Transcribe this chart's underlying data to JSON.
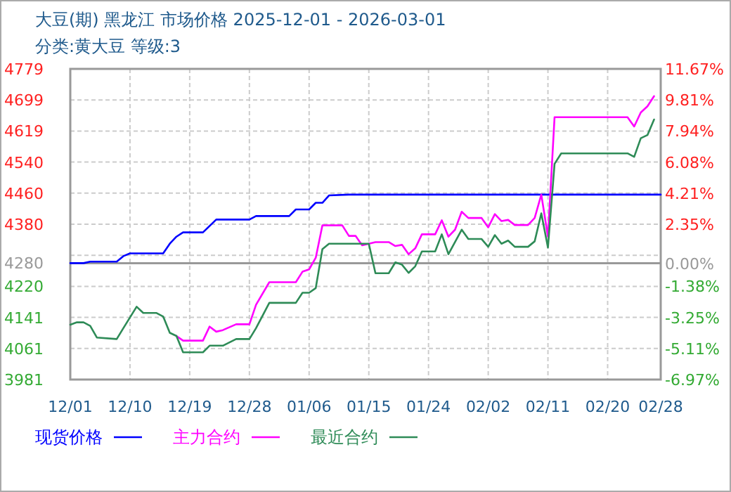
{
  "chart_data": {
    "type": "line",
    "title": "大豆(期) 黑龙江 市场价格 2025-12-01 - 2026-03-01",
    "subtitle": "分类:黄大豆 等级:3",
    "xlim": [
      "2025-12-01",
      "2026-02-28"
    ],
    "xticks": [
      {
        "value": "2025-12-01",
        "label": "12/01"
      },
      {
        "value": "2025-12-10",
        "label": "12/10"
      },
      {
        "value": "2025-12-19",
        "label": "12/19"
      },
      {
        "value": "2025-12-28",
        "label": "12/28"
      },
      {
        "value": "2026-01-06",
        "label": "01/06"
      },
      {
        "value": "2026-01-15",
        "label": "01/15"
      },
      {
        "value": "2026-01-24",
        "label": "01/24"
      },
      {
        "value": "2026-02-02",
        "label": "02/02"
      },
      {
        "value": "2026-02-11",
        "label": "02/11"
      },
      {
        "value": "2026-02-20",
        "label": "02/20"
      },
      {
        "value": "2026-02-28",
        "label": "02/28"
      }
    ],
    "ylim": [
      3981,
      4779
    ],
    "yticks": [
      4779,
      {
        "value": 4699.2,
        "label": "4699"
      },
      {
        "value": 4619.4,
        "label": "4619"
      },
      {
        "value": 4539.6,
        "label": "4540"
      },
      {
        "value": 4459.8,
        "label": "4460"
      },
      4380,
      {
        "value": 4300.2,
        "label": null
      },
      4280,
      {
        "value": 4220.4,
        "label": "4220"
      },
      {
        "value": 4140.6,
        "label": "4141"
      },
      {
        "value": 4060.8,
        "label": "4061"
      },
      3981
    ],
    "y2lim": [
      -6.97,
      11.67
    ],
    "y2ticks": [
      {
        "value": 11.67,
        "label": "11.67%"
      },
      {
        "value": 9.81,
        "label": "9.81%"
      },
      {
        "value": 7.94,
        "label": "7.94%"
      },
      {
        "value": 6.08,
        "label": "6.08%"
      },
      {
        "value": 4.21,
        "label": "4.21%"
      },
      {
        "value": 2.35,
        "label": "2.35%"
      },
      {
        "value": 0,
        "label": "0.00%"
      },
      {
        "value": -1.38,
        "label": "-1.38%"
      },
      {
        "value": -3.25,
        "label": "-3.25%"
      },
      {
        "value": -5.11,
        "label": "-5.11%"
      },
      {
        "value": -6.97,
        "label": "-6.97%"
      }
    ],
    "ref_lines": [
      {
        "axis": "y",
        "value": 4280,
        "color": "#999999"
      }
    ],
    "grid": true,
    "legend": "bottom",
    "series": [
      {
        "name": "现货价格",
        "color": "#0000ff",
        "x": [
          "2025-12-01",
          "2025-12-03",
          "2025-12-04",
          "2025-12-08",
          "2025-12-09",
          "2025-12-10",
          "2025-12-15",
          "2025-12-16",
          "2025-12-17",
          "2025-12-18",
          "2025-12-21",
          "2025-12-23",
          "2025-12-28",
          "2025-12-29",
          "2026-01-03",
          "2026-01-04",
          "2026-01-06",
          "2026-01-07",
          "2026-01-08",
          "2026-01-09",
          "2026-01-12",
          "2026-02-28"
        ],
        "values": [
          4280,
          4280,
          4284,
          4284,
          4298,
          4305,
          4305,
          4330,
          4348,
          4359,
          4359,
          4392,
          4392,
          4401,
          4401,
          4418,
          4418,
          4435,
          4435,
          4454,
          4456,
          4456
        ]
      },
      {
        "name": "主力合约",
        "color": "#ff00ff",
        "x": [
          "2025-12-17",
          "2025-12-18",
          "2025-12-21",
          "2025-12-22",
          "2025-12-23",
          "2025-12-24",
          "2025-12-26",
          "2025-12-28",
          "2025-12-29",
          "2025-12-31",
          "2026-01-04",
          "2026-01-05",
          "2026-01-06",
          "2026-01-07",
          "2026-01-08",
          "2026-01-11",
          "2026-01-12",
          "2026-01-13",
          "2026-01-14",
          "2026-01-15",
          "2026-01-16",
          "2026-01-18",
          "2026-01-19",
          "2026-01-20",
          "2026-01-21",
          "2026-01-22",
          "2026-01-23",
          "2026-01-25",
          "2026-01-26",
          "2026-01-27",
          "2026-01-28",
          "2026-01-29",
          "2026-01-30",
          "2026-02-01",
          "2026-02-02",
          "2026-02-03",
          "2026-02-04",
          "2026-02-05",
          "2026-02-06",
          "2026-02-08",
          "2026-02-09",
          "2026-02-10",
          "2026-02-11",
          "2026-02-12",
          "2026-02-13",
          "2026-02-23",
          "2026-02-24",
          "2026-02-25",
          "2026-02-26",
          "2026-02-27"
        ],
        "values": [
          4093,
          4081,
          4081,
          4117,
          4104,
          4108,
          4123,
          4123,
          4173,
          4231,
          4231,
          4258,
          4264,
          4294,
          4377,
          4377,
          4350,
          4350,
          4326,
          4330,
          4334,
          4334,
          4324,
          4327,
          4303,
          4318,
          4354,
          4354,
          4390,
          4348,
          4366,
          4412,
          4396,
          4396,
          4372,
          4406,
          4388,
          4391,
          4378,
          4378,
          4396,
          4456,
          4348,
          4655,
          4655,
          4655,
          4631,
          4667,
          4683,
          4709
        ]
      },
      {
        "name": "最近合约",
        "color": "#2e8b57",
        "x": [
          "2025-12-01",
          "2025-12-02",
          "2025-12-03",
          "2025-12-04",
          "2025-12-05",
          "2025-12-08",
          "2025-12-09",
          "2025-12-11",
          "2025-12-12",
          "2025-12-14",
          "2025-12-15",
          "2025-12-16",
          "2025-12-17",
          "2025-12-18",
          "2025-12-21",
          "2025-12-22",
          "2025-12-24",
          "2025-12-26",
          "2025-12-28",
          "2025-12-29",
          "2025-12-31",
          "2026-01-04",
          "2026-01-05",
          "2026-01-06",
          "2026-01-07",
          "2026-01-08",
          "2026-01-09",
          "2026-01-15",
          "2026-01-16",
          "2026-01-18",
          "2026-01-19",
          "2026-01-20",
          "2026-01-21",
          "2026-01-22",
          "2026-01-23",
          "2026-01-25",
          "2026-01-26",
          "2026-01-27",
          "2026-01-29",
          "2026-01-30",
          "2026-02-01",
          "2026-02-02",
          "2026-02-03",
          "2026-02-04",
          "2026-02-05",
          "2026-02-06",
          "2026-02-08",
          "2026-02-09",
          "2026-02-10",
          "2026-02-11",
          "2026-02-12",
          "2026-02-13",
          "2026-02-23",
          "2026-02-24",
          "2026-02-25",
          "2026-02-26",
          "2026-02-27"
        ],
        "values": [
          4122,
          4128,
          4128,
          4119,
          4089,
          4085,
          4113,
          4168,
          4152,
          4152,
          4143,
          4101,
          4093,
          4051,
          4051,
          4068,
          4068,
          4085,
          4085,
          4113,
          4178,
          4178,
          4204,
          4204,
          4216,
          4316,
          4330,
          4330,
          4254,
          4254,
          4282,
          4276,
          4255,
          4272,
          4310,
          4310,
          4354,
          4303,
          4366,
          4342,
          4342,
          4322,
          4352,
          4330,
          4338,
          4322,
          4322,
          4336,
          4408,
          4320,
          4535,
          4562,
          4562,
          4553,
          4601,
          4609,
          4649
        ]
      }
    ]
  }
}
